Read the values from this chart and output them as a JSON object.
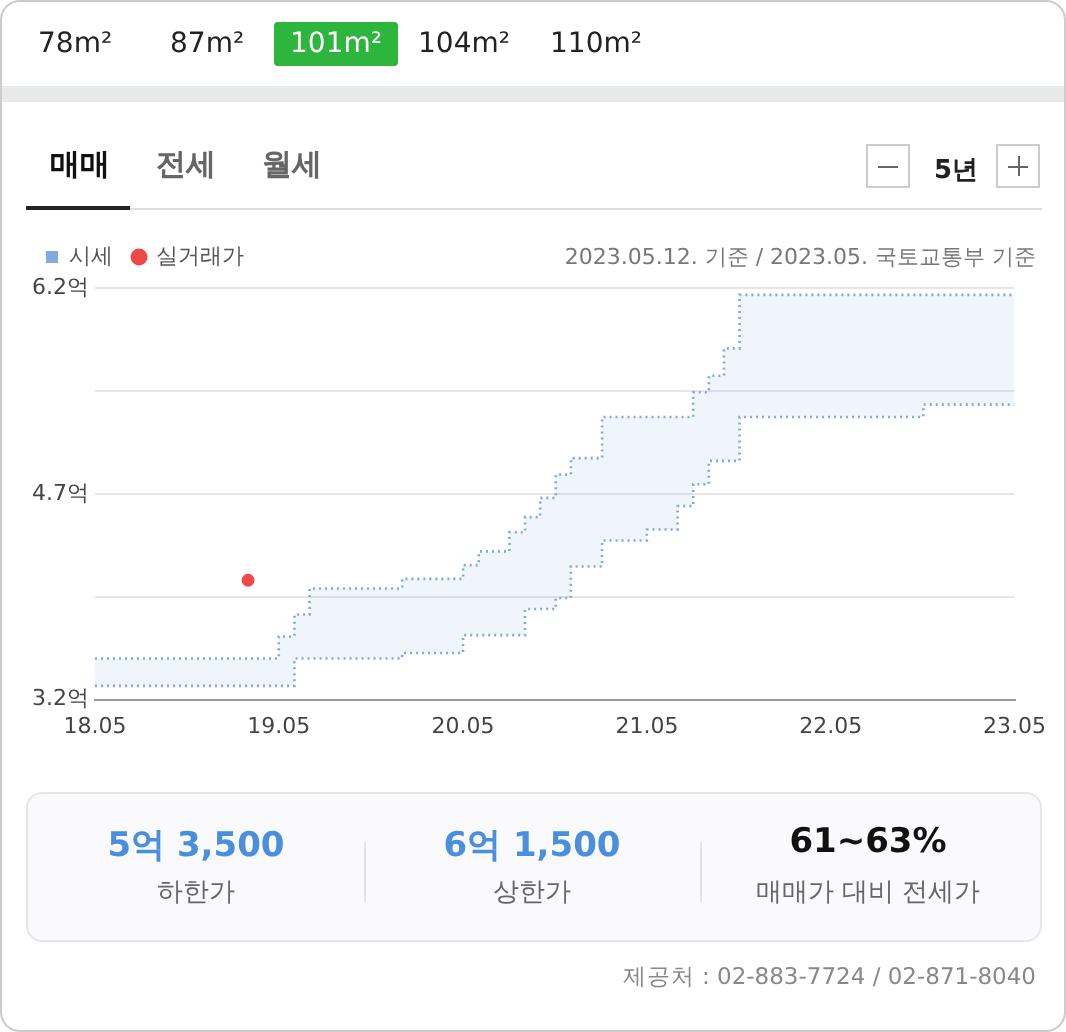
{
  "chart_data": {
    "type": "step",
    "xlim": [
      "2018-05",
      "2023-05"
    ],
    "xticks": [
      {
        "value": "2018-05",
        "label": "18.05"
      },
      {
        "value": "2019-05",
        "label": "19.05"
      },
      {
        "value": "2020-05",
        "label": "20.05"
      },
      {
        "value": "2021-05",
        "label": "21.05"
      },
      {
        "value": "2022-05",
        "label": "22.05"
      },
      {
        "value": "2023-05",
        "label": "23.05"
      }
    ],
    "ylim": [
      3.2,
      6.2
    ],
    "yticks": [
      {
        "value": 3.2,
        "label": "3.2억"
      },
      {
        "value": 3.95,
        "label": null
      },
      {
        "value": 4.7,
        "label": "4.7억"
      },
      {
        "value": 5.45,
        "label": null
      },
      {
        "value": 6.2,
        "label": "6.2억"
      }
    ],
    "grid": "y",
    "legend": "top left",
    "line_style": "dotted",
    "series": [
      {
        "name": "시세",
        "type": "step",
        "color": "#7fa9e0",
        "x": [
          "2018-05",
          "2019-05",
          "2019-06",
          "2019-07",
          "2020-01",
          "2020-05",
          "2020-06",
          "2020-08",
          "2020-09",
          "2020-10",
          "2020-11",
          "2020-12",
          "2021-02",
          "2021-05",
          "2021-07",
          "2021-08",
          "2021-09",
          "2021-10",
          "2021-11",
          "2022-11",
          "2023-05"
        ],
        "values": [
          3.3,
          3.3,
          3.5,
          3.5,
          3.54,
          3.67,
          3.67,
          3.67,
          3.86,
          3.86,
          3.94,
          4.17,
          4.36,
          4.44,
          4.61,
          4.77,
          4.94,
          4.94,
          5.26,
          5.35,
          5.35
        ],
        "lower": [
          3.3,
          3.3,
          3.5,
          3.5,
          3.54,
          3.67,
          3.67,
          3.67,
          3.86,
          3.86,
          3.94,
          4.17,
          4.36,
          4.44,
          4.61,
          4.77,
          4.94,
          4.94,
          5.26,
          5.35,
          5.35
        ],
        "upper": [
          3.5,
          3.66,
          3.82,
          4.01,
          4.08,
          4.18,
          4.28,
          4.42,
          4.53,
          4.67,
          4.84,
          4.96,
          5.26,
          5.26,
          5.26,
          5.44,
          5.56,
          5.76,
          6.15,
          6.15,
          6.15
        ]
      },
      {
        "type": "step",
        "color": "#7fa9e0",
        "x": [
          "2018-05",
          "2019-05",
          "2019-06",
          "2019-07",
          "2020-01",
          "2020-05",
          "2020-06",
          "2020-08",
          "2020-09",
          "2020-10",
          "2020-11",
          "2020-12",
          "2021-02",
          "2021-08",
          "2021-09",
          "2021-10",
          "2021-11",
          "2023-05"
        ],
        "values": [
          3.5,
          3.66,
          3.82,
          4.01,
          4.08,
          4.18,
          4.28,
          4.42,
          4.53,
          4.67,
          4.84,
          4.96,
          5.26,
          5.44,
          5.56,
          5.76,
          6.15,
          6.15
        ]
      },
      {
        "name": "실거래가",
        "type": "scatter",
        "color": "#f04848",
        "x": [
          "2019-03"
        ],
        "values": [
          4.07
        ]
      }
    ],
    "annotations": [
      "78m²",
      "87m²",
      "101m²",
      "104m²",
      "110m²",
      "매매",
      "전세",
      "월세",
      "5년",
      "2023.05.12. 기준 / 2023.05. 국토교통부 기준",
      "5억 3,500",
      "하한가",
      "6억 1,500",
      "상한가",
      "61~63%",
      "매매가 대비 전세가",
      "제공처 : 02-883-7724 / 02-871-8040"
    ]
  }
}
